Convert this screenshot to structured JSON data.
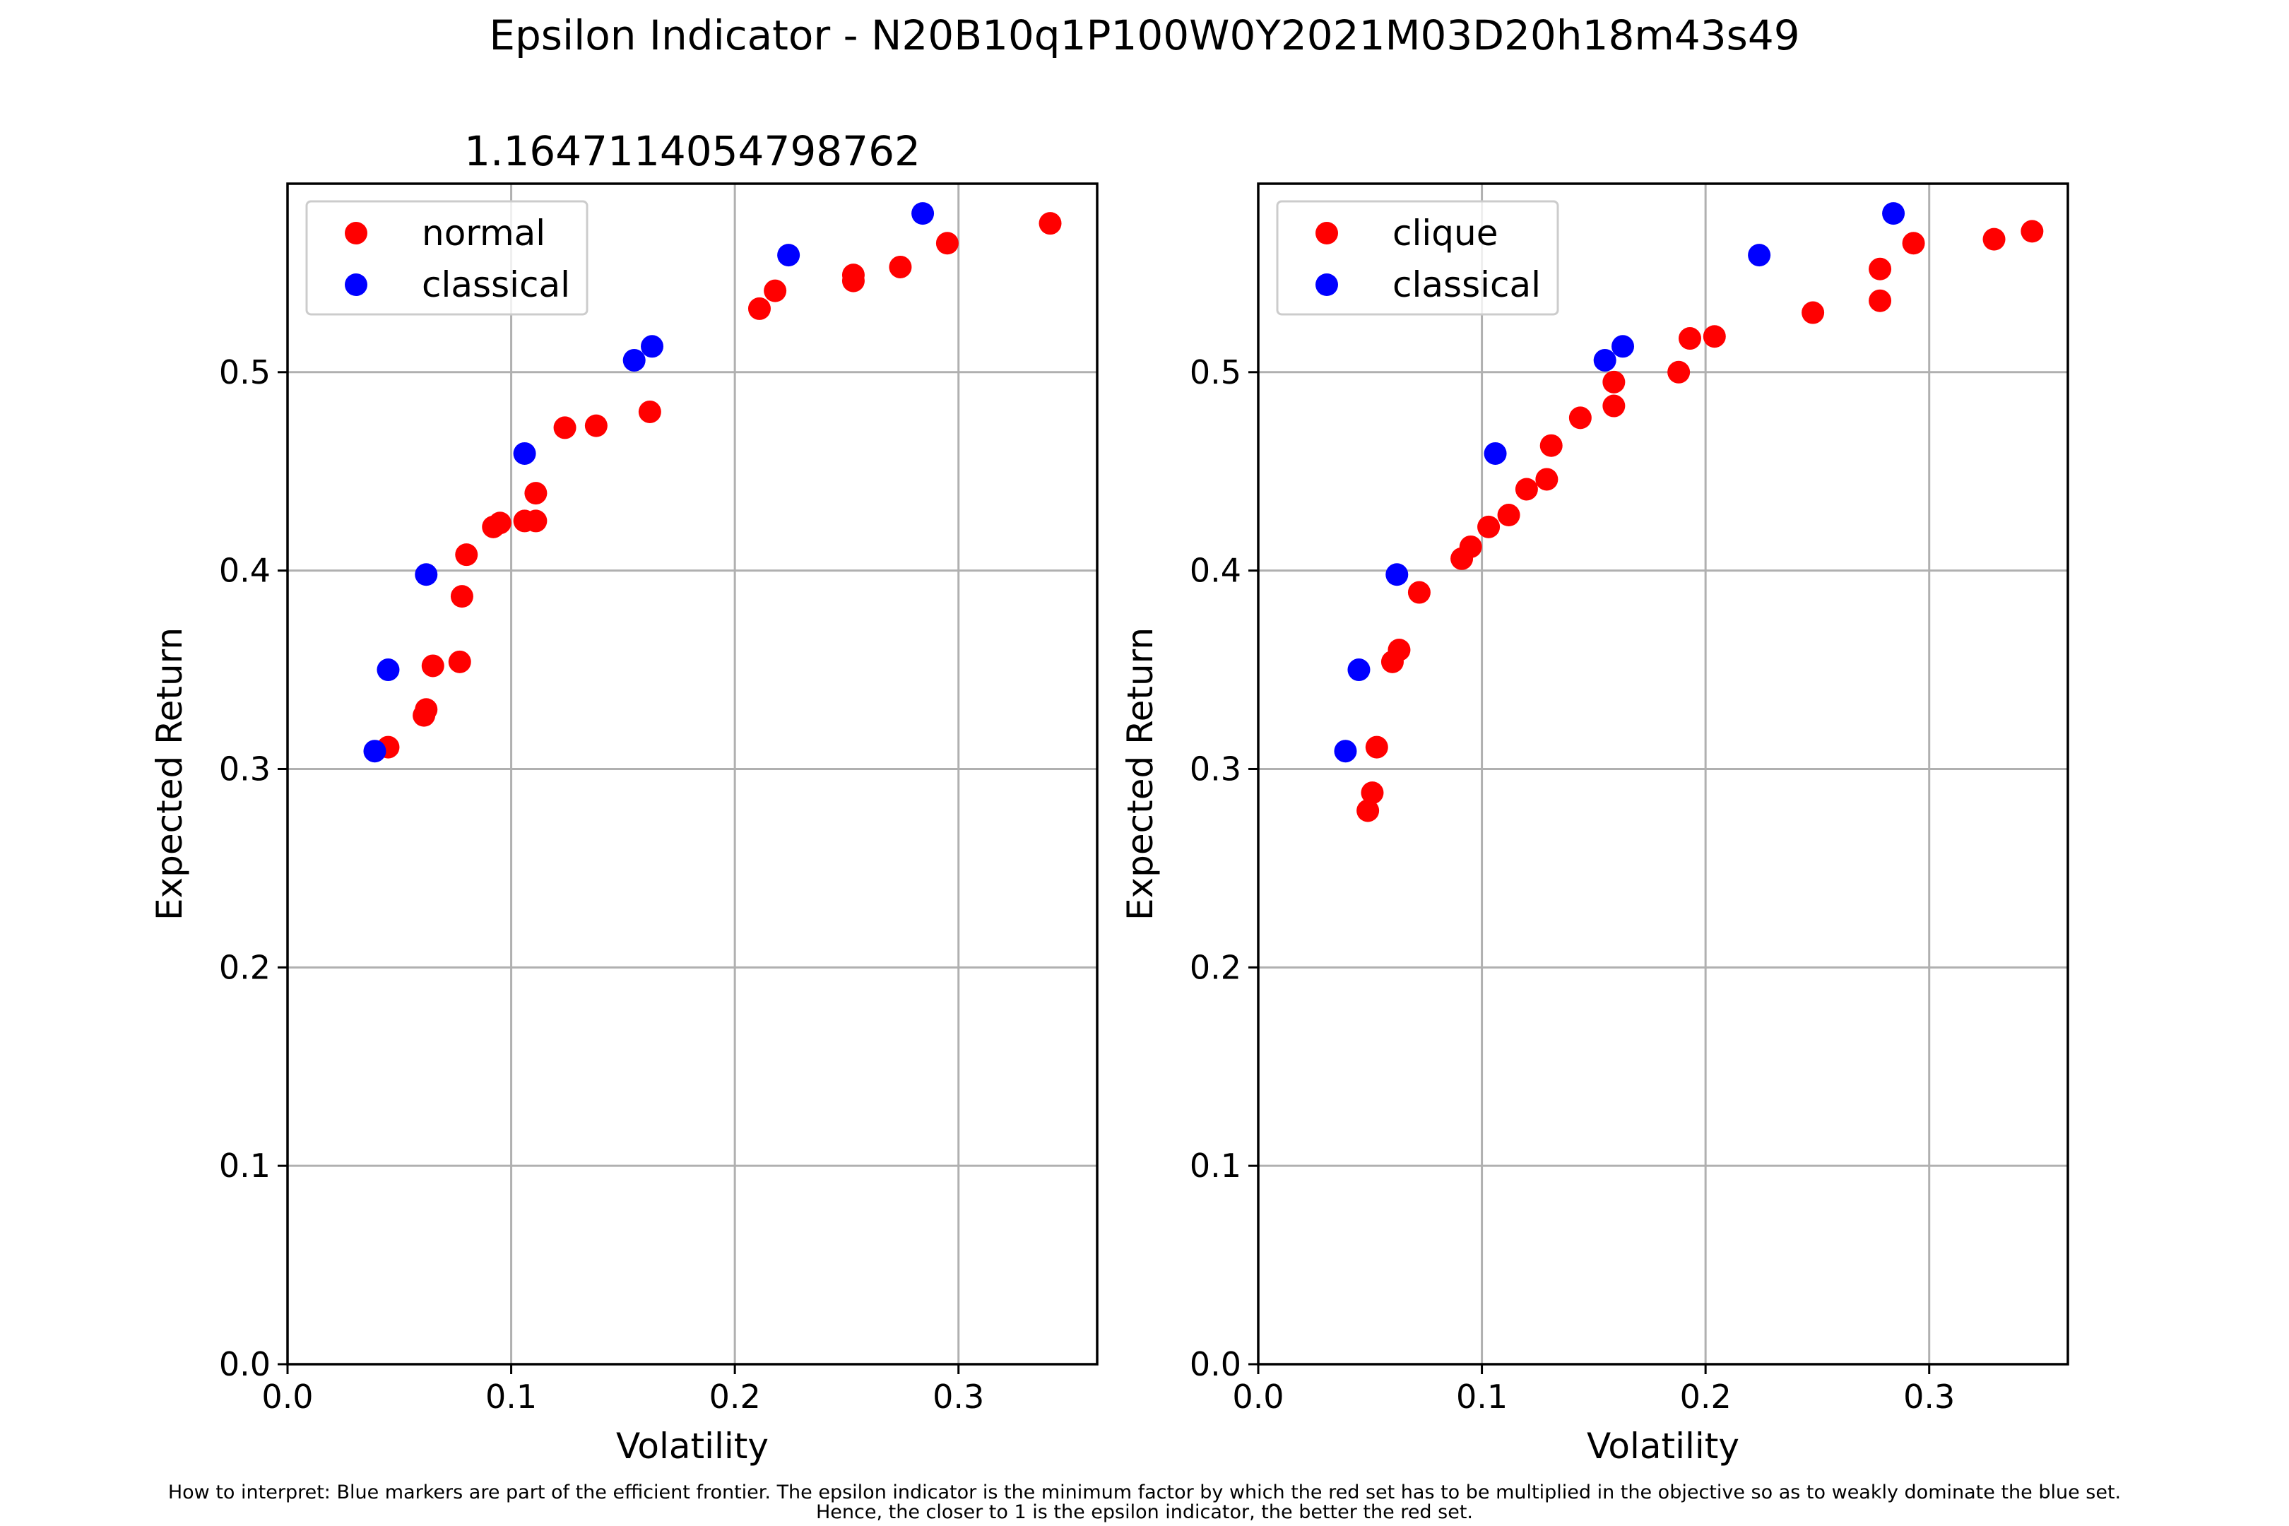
{
  "figure": {
    "title": "Epsilon Indicator - N20B10q1P100W0Y2021M03D20h18m43s49",
    "footnote_line1": "How to interpret: Blue markers are part of the efficient frontier. The epsilon indicator is the minimum factor by which the red set has to be multiplied in the objective so as to weakly dominate the blue set.",
    "footnote_line2": "Hence, the closer to 1 is the epsilon indicator, the better the red set."
  },
  "colors": {
    "red_set": "#ff0000",
    "blue_set": "#0000ff"
  },
  "chart_data": [
    {
      "type": "scatter",
      "title": "1.1647114054798762",
      "xlabel": "Volatility",
      "ylabel": "Expected Return",
      "xlim": [
        0.0,
        0.362
      ],
      "ylim": [
        0.0,
        0.595
      ],
      "xticks": [
        "0.0",
        "0.1",
        "0.2",
        "0.3"
      ],
      "yticks": [
        "0.0",
        "0.1",
        "0.2",
        "0.3",
        "0.4",
        "0.5"
      ],
      "grid": true,
      "legend_position": "upper left",
      "series": [
        {
          "name": "normal",
          "color": "#ff0000",
          "points": [
            [
              0.045,
              0.311
            ],
            [
              0.061,
              0.327
            ],
            [
              0.062,
              0.33
            ],
            [
              0.065,
              0.352
            ],
            [
              0.077,
              0.354
            ],
            [
              0.078,
              0.387
            ],
            [
              0.08,
              0.408
            ],
            [
              0.092,
              0.422
            ],
            [
              0.095,
              0.424
            ],
            [
              0.106,
              0.425
            ],
            [
              0.111,
              0.425
            ],
            [
              0.111,
              0.439
            ],
            [
              0.124,
              0.472
            ],
            [
              0.138,
              0.473
            ],
            [
              0.162,
              0.48
            ],
            [
              0.211,
              0.532
            ],
            [
              0.218,
              0.541
            ],
            [
              0.253,
              0.546
            ],
            [
              0.253,
              0.549
            ],
            [
              0.274,
              0.553
            ],
            [
              0.295,
              0.565
            ],
            [
              0.341,
              0.575
            ]
          ]
        },
        {
          "name": "classical",
          "color": "#0000ff",
          "points": [
            [
              0.039,
              0.309
            ],
            [
              0.045,
              0.35
            ],
            [
              0.062,
              0.398
            ],
            [
              0.106,
              0.459
            ],
            [
              0.155,
              0.506
            ],
            [
              0.163,
              0.513
            ],
            [
              0.224,
              0.559
            ],
            [
              0.284,
              0.58
            ]
          ]
        }
      ]
    },
    {
      "type": "scatter",
      "title": "",
      "xlabel": "Volatility",
      "ylabel": "Expected Return",
      "xlim": [
        0.0,
        0.362
      ],
      "ylim": [
        0.0,
        0.595
      ],
      "xticks": [
        "0.0",
        "0.1",
        "0.2",
        "0.3"
      ],
      "yticks": [
        "0.0",
        "0.1",
        "0.2",
        "0.3",
        "0.4",
        "0.5"
      ],
      "grid": true,
      "legend_position": "upper left",
      "series": [
        {
          "name": "clique",
          "color": "#ff0000",
          "points": [
            [
              0.049,
              0.279
            ],
            [
              0.051,
              0.288
            ],
            [
              0.053,
              0.311
            ],
            [
              0.06,
              0.354
            ],
            [
              0.063,
              0.36
            ],
            [
              0.072,
              0.389
            ],
            [
              0.091,
              0.406
            ],
            [
              0.095,
              0.412
            ],
            [
              0.103,
              0.422
            ],
            [
              0.112,
              0.428
            ],
            [
              0.12,
              0.441
            ],
            [
              0.129,
              0.446
            ],
            [
              0.131,
              0.463
            ],
            [
              0.144,
              0.477
            ],
            [
              0.159,
              0.483
            ],
            [
              0.159,
              0.495
            ],
            [
              0.188,
              0.5
            ],
            [
              0.193,
              0.517
            ],
            [
              0.204,
              0.518
            ],
            [
              0.248,
              0.53
            ],
            [
              0.278,
              0.536
            ],
            [
              0.278,
              0.552
            ],
            [
              0.293,
              0.565
            ],
            [
              0.329,
              0.567
            ],
            [
              0.346,
              0.571
            ]
          ]
        },
        {
          "name": "classical",
          "color": "#0000ff",
          "points": [
            [
              0.039,
              0.309
            ],
            [
              0.045,
              0.35
            ],
            [
              0.062,
              0.398
            ],
            [
              0.106,
              0.459
            ],
            [
              0.155,
              0.506
            ],
            [
              0.163,
              0.513
            ],
            [
              0.224,
              0.559
            ],
            [
              0.284,
              0.58
            ]
          ]
        }
      ]
    }
  ]
}
